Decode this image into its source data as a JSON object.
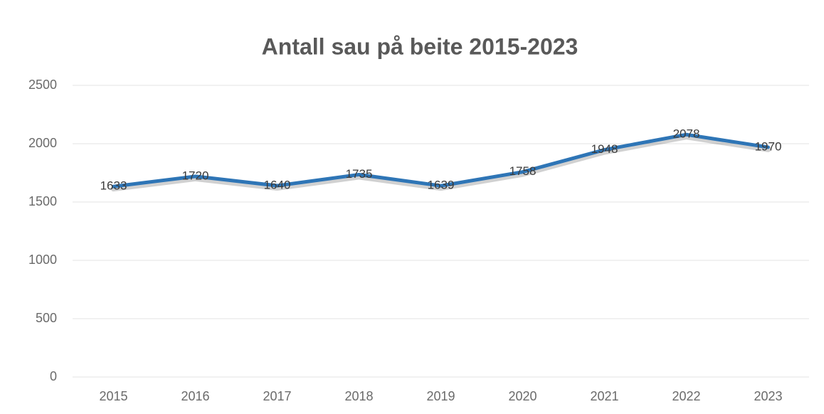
{
  "chart_data": {
    "type": "line",
    "title": "Antall sau på beite 2015-2023",
    "categories": [
      "2015",
      "2016",
      "2017",
      "2018",
      "2019",
      "2020",
      "2021",
      "2022",
      "2023"
    ],
    "series": [
      {
        "name": "Antall sau",
        "color": "#2e75b6",
        "values": [
          1633,
          1720,
          1640,
          1735,
          1639,
          1758,
          1948,
          2078,
          1970
        ]
      }
    ],
    "ylim": [
      0,
      2500
    ],
    "yticks": [
      0,
      500,
      1000,
      1500,
      2000,
      2500
    ],
    "grid": true,
    "legend": false,
    "data_labels": true
  }
}
